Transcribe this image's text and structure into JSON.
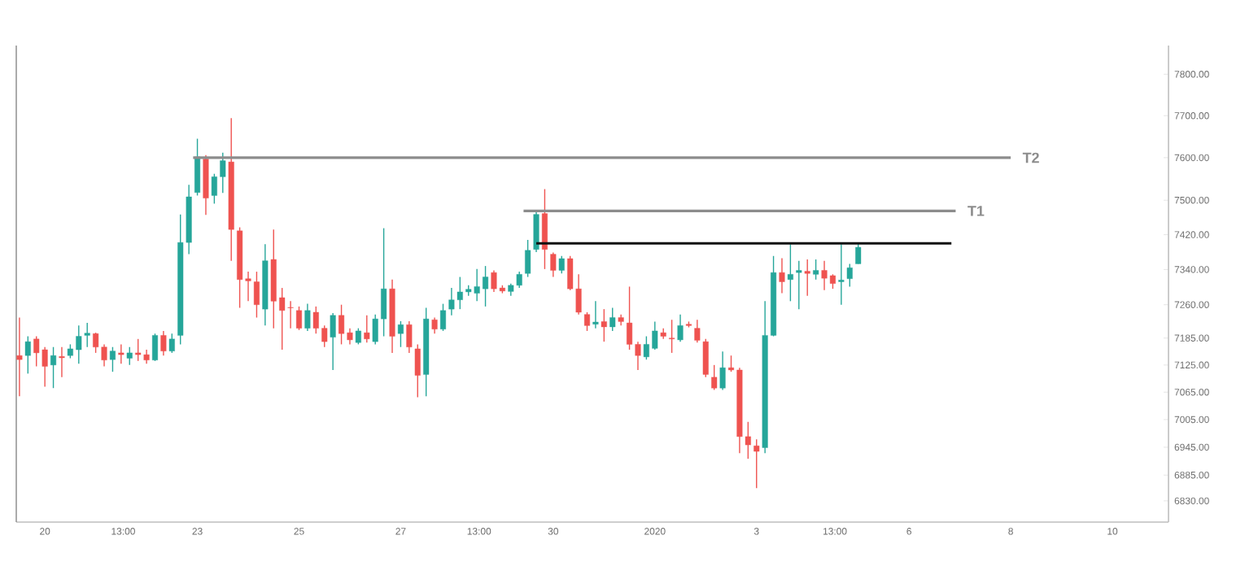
{
  "chart_data": {
    "type": "candlestick",
    "x": [
      "2019-12-19T12:00",
      "2019-12-19T16:00",
      "2019-12-19T20:00",
      "2019-12-20T00:00",
      "2019-12-20T04:00",
      "2019-12-20T08:00",
      "2019-12-20T12:00",
      "2019-12-20T16:00",
      "2019-12-20T20:00",
      "2019-12-21T00:00",
      "2019-12-21T04:00",
      "2019-12-21T08:00",
      "2019-12-21T12:00",
      "2019-12-21T16:00",
      "2019-12-21T20:00",
      "2019-12-22T00:00",
      "2019-12-22T04:00",
      "2019-12-22T08:00",
      "2019-12-22T12:00",
      "2019-12-22T16:00",
      "2019-12-22T20:00",
      "2019-12-23T00:00",
      "2019-12-23T04:00",
      "2019-12-23T08:00",
      "2019-12-23T12:00",
      "2019-12-23T16:00",
      "2019-12-23T20:00",
      "2019-12-24T00:00",
      "2019-12-24T04:00",
      "2019-12-24T08:00",
      "2019-12-24T12:00",
      "2019-12-24T16:00",
      "2019-12-24T20:00",
      "2019-12-25T00:00",
      "2019-12-25T04:00",
      "2019-12-25T08:00",
      "2019-12-25T12:00",
      "2019-12-25T16:00",
      "2019-12-25T20:00",
      "2019-12-26T00:00",
      "2019-12-26T04:00",
      "2019-12-26T08:00",
      "2019-12-26T12:00",
      "2019-12-26T16:00",
      "2019-12-26T20:00",
      "2019-12-27T00:00",
      "2019-12-27T04:00",
      "2019-12-27T08:00",
      "2019-12-27T12:00",
      "2019-12-27T16:00",
      "2019-12-27T20:00",
      "2019-12-28T00:00",
      "2019-12-28T04:00",
      "2019-12-28T08:00",
      "2019-12-28T12:00",
      "2019-12-28T16:00",
      "2019-12-28T20:00",
      "2019-12-29T00:00",
      "2019-12-29T04:00",
      "2019-12-29T08:00",
      "2019-12-29T12:00",
      "2019-12-29T16:00",
      "2019-12-29T20:00",
      "2019-12-30T00:00",
      "2019-12-30T04:00",
      "2019-12-30T08:00",
      "2019-12-30T12:00",
      "2019-12-30T16:00",
      "2019-12-30T20:00",
      "2019-12-31T00:00",
      "2019-12-31T04:00",
      "2019-12-31T08:00",
      "2019-12-31T12:00",
      "2019-12-31T16:00",
      "2019-12-31T20:00",
      "2020-01-01T00:00",
      "2020-01-01T04:00",
      "2020-01-01T08:00",
      "2020-01-01T12:00",
      "2020-01-01T16:00",
      "2020-01-01T20:00",
      "2020-01-02T00:00",
      "2020-01-02T04:00",
      "2020-01-02T08:00",
      "2020-01-02T12:00",
      "2020-01-02T16:00",
      "2020-01-02T20:00",
      "2020-01-03T00:00",
      "2020-01-03T04:00",
      "2020-01-03T08:00",
      "2020-01-03T12:00",
      "2020-01-03T16:00",
      "2020-01-03T20:00",
      "2020-01-04T00:00",
      "2020-01-04T04:00",
      "2020-01-04T08:00",
      "2020-01-04T12:00",
      "2020-01-04T16:00",
      "2020-01-04T20:00",
      "2020-01-05T00:00"
    ],
    "ohlc": [
      [
        7146,
        7231,
        7056,
        7137
      ],
      [
        7146,
        7189,
        7106,
        7177
      ],
      [
        7183,
        7189,
        7122,
        7152
      ],
      [
        7159,
        7165,
        7077,
        7122
      ],
      [
        7125,
        7165,
        7074,
        7146
      ],
      [
        7144,
        7165,
        7098,
        7141
      ],
      [
        7146,
        7171,
        7140,
        7161
      ],
      [
        7159,
        7213,
        7128,
        7189
      ],
      [
        7191,
        7219,
        7165,
        7196
      ],
      [
        7195,
        7197,
        7152,
        7165
      ],
      [
        7165,
        7171,
        7122,
        7136
      ],
      [
        7137,
        7165,
        7110,
        7156
      ],
      [
        7152,
        7171,
        7128,
        7148
      ],
      [
        7140,
        7165,
        7125,
        7152
      ],
      [
        7152,
        7183,
        7134,
        7148
      ],
      [
        7148,
        7159,
        7128,
        7136
      ],
      [
        7136,
        7195,
        7134,
        7191
      ],
      [
        7191,
        7201,
        7146,
        7156
      ],
      [
        7156,
        7195,
        7152,
        7183
      ],
      [
        7191,
        7467,
        7171,
        7402
      ],
      [
        7402,
        7536,
        7375,
        7508
      ],
      [
        7518,
        7645,
        7511,
        7602
      ],
      [
        7597,
        7606,
        7466,
        7505
      ],
      [
        7511,
        7562,
        7492,
        7555
      ],
      [
        7555,
        7612,
        7517,
        7593
      ],
      [
        7590,
        7694,
        7360,
        7432
      ],
      [
        7429,
        7437,
        7253,
        7317
      ],
      [
        7319,
        7335,
        7268,
        7314
      ],
      [
        7312,
        7335,
        7231,
        7260
      ],
      [
        7250,
        7398,
        7213,
        7360
      ],
      [
        7363,
        7432,
        7207,
        7268
      ],
      [
        7276,
        7298,
        7159,
        7247
      ],
      [
        7254,
        7268,
        7207,
        7253
      ],
      [
        7247,
        7256,
        7203,
        7207
      ],
      [
        7207,
        7262,
        7201,
        7247
      ],
      [
        7243,
        7256,
        7195,
        7207
      ],
      [
        7207,
        7213,
        7165,
        7177
      ],
      [
        7187,
        7241,
        7114,
        7236
      ],
      [
        7236,
        7260,
        7171,
        7195
      ],
      [
        7197,
        7207,
        7171,
        7181
      ],
      [
        7175,
        7207,
        7171,
        7201
      ],
      [
        7197,
        7236,
        7175,
        7183
      ],
      [
        7177,
        7238,
        7171,
        7228
      ],
      [
        7228,
        7435,
        7189,
        7296
      ],
      [
        7296,
        7317,
        7152,
        7189
      ],
      [
        7195,
        7223,
        7165,
        7215
      ],
      [
        7215,
        7223,
        7152,
        7165
      ],
      [
        7161,
        7171,
        7054,
        7102
      ],
      [
        7104,
        7253,
        7056,
        7228
      ],
      [
        7226,
        7231,
        7195,
        7205
      ],
      [
        7205,
        7262,
        7201,
        7247
      ],
      [
        7250,
        7298,
        7236,
        7271
      ],
      [
        7271,
        7323,
        7250,
        7289
      ],
      [
        7289,
        7304,
        7280,
        7295
      ],
      [
        7286,
        7341,
        7268,
        7301
      ],
      [
        7296,
        7348,
        7256,
        7323
      ],
      [
        7333,
        7338,
        7289,
        7296
      ],
      [
        7298,
        7304,
        7286,
        7291
      ],
      [
        7290,
        7308,
        7280,
        7304
      ],
      [
        7304,
        7335,
        7298,
        7329
      ],
      [
        7331,
        7408,
        7323,
        7384
      ],
      [
        7386,
        7476,
        7380,
        7467
      ],
      [
        7469,
        7526,
        7341,
        7386
      ],
      [
        7375,
        7379,
        7323,
        7338
      ],
      [
        7338,
        7371,
        7331,
        7365
      ],
      [
        7365,
        7371,
        7293,
        7296
      ],
      [
        7296,
        7329,
        7238,
        7243
      ],
      [
        7238,
        7243,
        7201,
        7213
      ],
      [
        7216,
        7268,
        7207,
        7221
      ],
      [
        7222,
        7250,
        7177,
        7210
      ],
      [
        7210,
        7253,
        7201,
        7231
      ],
      [
        7231,
        7238,
        7213,
        7222
      ],
      [
        7219,
        7301,
        7159,
        7171
      ],
      [
        7171,
        7177,
        7114,
        7146
      ],
      [
        7143,
        7189,
        7137,
        7171
      ],
      [
        7162,
        7222,
        7159,
        7201
      ],
      [
        7197,
        7207,
        7183,
        7189
      ],
      [
        7185,
        7226,
        7152,
        7183
      ],
      [
        7181,
        7238,
        7177,
        7213
      ],
      [
        7216,
        7222,
        7209,
        7213
      ],
      [
        7207,
        7226,
        7175,
        7180
      ],
      [
        7177,
        7183,
        7098,
        7104
      ],
      [
        7098,
        7125,
        7070,
        7074
      ],
      [
        7074,
        7155,
        7070,
        7119
      ],
      [
        7119,
        7146,
        7110,
        7114
      ],
      [
        7114,
        7119,
        6932,
        6968
      ],
      [
        6968,
        7000,
        6920,
        6950
      ],
      [
        6948,
        6962,
        6857,
        6936
      ],
      [
        6944,
        7268,
        6932,
        7191
      ],
      [
        7191,
        7371,
        7189,
        7333
      ],
      [
        7333,
        7366,
        7286,
        7312
      ],
      [
        7317,
        7398,
        7268,
        7329
      ],
      [
        7333,
        7360,
        7250,
        7338
      ],
      [
        7336,
        7363,
        7280,
        7331
      ],
      [
        7329,
        7363,
        7317,
        7338
      ],
      [
        7338,
        7360,
        7293,
        7320
      ],
      [
        7326,
        7329,
        7296,
        7308
      ],
      [
        7312,
        7398,
        7260,
        7316
      ],
      [
        7319,
        7353,
        7301,
        7344
      ],
      [
        7353,
        7400,
        7353,
        7391
      ]
    ],
    "colors": [
      "#ef5350",
      "#26a69a",
      "#ef5350",
      "#ef5350",
      "#26a69a",
      "#ef5350",
      "#26a69a",
      "#26a69a",
      "#26a69a",
      "#ef5350",
      "#ef5350",
      "#26a69a",
      "#ef5350",
      "#26a69a",
      "#ef5350",
      "#ef5350",
      "#26a69a",
      "#ef5350",
      "#26a69a",
      "#26a69a",
      "#26a69a",
      "#26a69a",
      "#ef5350",
      "#26a69a",
      "#26a69a",
      "#ef5350",
      "#ef5350",
      "#ef5350",
      "#ef5350",
      "#26a69a",
      "#ef5350",
      "#ef5350",
      "#ef5350",
      "#ef5350",
      "#26a69a",
      "#ef5350",
      "#ef5350",
      "#26a69a",
      "#ef5350",
      "#ef5350",
      "#26a69a",
      "#ef5350",
      "#26a69a",
      "#26a69a",
      "#ef5350",
      "#26a69a",
      "#ef5350",
      "#ef5350",
      "#26a69a",
      "#ef5350",
      "#26a69a",
      "#26a69a",
      "#26a69a",
      "#26a69a",
      "#26a69a",
      "#26a69a",
      "#ef5350",
      "#ef5350",
      "#26a69a",
      "#26a69a",
      "#26a69a",
      "#26a69a",
      "#ef5350",
      "#ef5350",
      "#26a69a",
      "#ef5350",
      "#ef5350",
      "#ef5350",
      "#26a69a",
      "#ef5350",
      "#26a69a",
      "#ef5350",
      "#ef5350",
      "#ef5350",
      "#26a69a",
      "#26a69a",
      "#ef5350",
      "#ef5350",
      "#26a69a",
      "#ef5350",
      "#ef5350",
      "#ef5350",
      "#ef5350",
      "#26a69a",
      "#ef5350",
      "#ef5350",
      "#ef5350",
      "#ef5350",
      "#26a69a",
      "#26a69a",
      "#ef5350",
      "#26a69a",
      "#26a69a",
      "#ef5350",
      "#26a69a",
      "#ef5350",
      "#ef5350",
      "#26a69a",
      "#26a69a",
      "#26a69a"
    ],
    "series": [
      {
        "type": "line",
        "name": "T2",
        "color": "#8c8c8c",
        "x": [
          "2019-12-22T22:00",
          "2020-01-08T00:00"
        ],
        "values": [
          7600,
          7600
        ]
      },
      {
        "type": "line",
        "name": "T1",
        "color": "#8c8c8c",
        "x": [
          "2019-12-29T10:00",
          "2020-01-06T22:00"
        ],
        "values": [
          7475,
          7475
        ]
      },
      {
        "type": "line",
        "color": "#111111",
        "x": [
          "2019-12-29T16:00",
          "2020-01-06T20:00"
        ],
        "values": [
          7400,
          7400
        ]
      }
    ],
    "xlim": [
      "2019-12-19T10:30",
      "2020-01-11T02:30"
    ],
    "ylim": [
      6785,
      7870
    ],
    "log": "y",
    "xticks": [
      {
        "value": "2019-12-20",
        "label": "20"
      },
      {
        "value": "2019-12-21T13:00",
        "label": "13:00"
      },
      {
        "value": "2019-12-23",
        "label": "23"
      },
      {
        "value": "2019-12-25",
        "label": "25"
      },
      {
        "value": "2019-12-27",
        "label": "27"
      },
      {
        "value": "2019-12-28T13:00",
        "label": "13:00"
      },
      {
        "value": "2019-12-30",
        "label": "30"
      },
      {
        "value": "2020-01-01",
        "label": "2020"
      },
      {
        "value": "2020-01-03",
        "label": "3"
      },
      {
        "value": "2020-01-04T13:00",
        "label": "13:00"
      },
      {
        "value": "2020-01-06",
        "label": "6"
      },
      {
        "value": "2020-01-08",
        "label": "8"
      },
      {
        "value": "2020-01-10",
        "label": "10"
      }
    ],
    "yticks": [
      {
        "value": 6830,
        "label": "6830.00"
      },
      {
        "value": 6885,
        "label": "6885.00"
      },
      {
        "value": 6945,
        "label": "6945.00"
      },
      {
        "value": 7005,
        "label": "7005.00"
      },
      {
        "value": 7065,
        "label": "7065.00"
      },
      {
        "value": 7125,
        "label": "7125.00"
      },
      {
        "value": 7185,
        "label": "7185.00"
      },
      {
        "value": 7260,
        "label": "7260.00"
      },
      {
        "value": 7340,
        "label": "7340.00"
      },
      {
        "value": 7420,
        "label": "7420.00"
      },
      {
        "value": 7500,
        "label": "7500.00"
      },
      {
        "value": 7600,
        "label": "7600.00"
      },
      {
        "value": 7700,
        "label": "7700.00"
      },
      {
        "value": 7800,
        "label": "7800.00"
      }
    ]
  }
}
